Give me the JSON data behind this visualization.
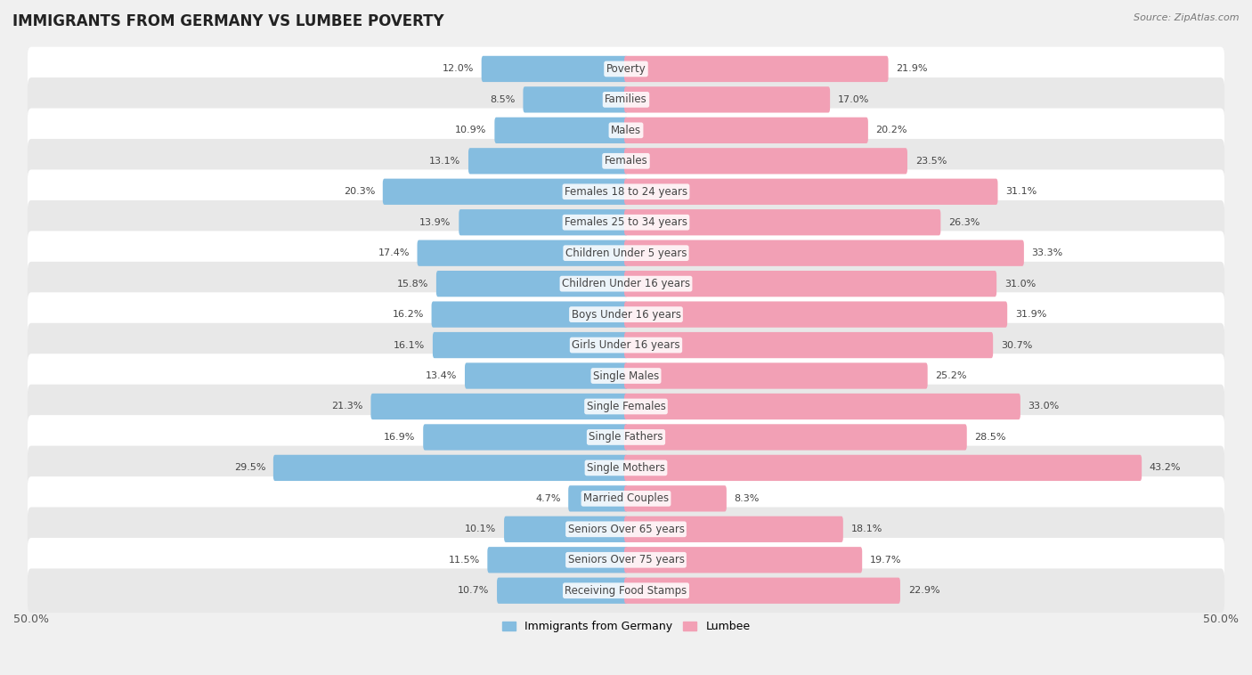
{
  "title": "IMMIGRANTS FROM GERMANY VS LUMBEE POVERTY",
  "source": "Source: ZipAtlas.com",
  "categories": [
    "Poverty",
    "Families",
    "Males",
    "Females",
    "Females 18 to 24 years",
    "Females 25 to 34 years",
    "Children Under 5 years",
    "Children Under 16 years",
    "Boys Under 16 years",
    "Girls Under 16 years",
    "Single Males",
    "Single Females",
    "Single Fathers",
    "Single Mothers",
    "Married Couples",
    "Seniors Over 65 years",
    "Seniors Over 75 years",
    "Receiving Food Stamps"
  ],
  "germany_values": [
    12.0,
    8.5,
    10.9,
    13.1,
    20.3,
    13.9,
    17.4,
    15.8,
    16.2,
    16.1,
    13.4,
    21.3,
    16.9,
    29.5,
    4.7,
    10.1,
    11.5,
    10.7
  ],
  "lumbee_values": [
    21.9,
    17.0,
    20.2,
    23.5,
    31.1,
    26.3,
    33.3,
    31.0,
    31.9,
    30.7,
    25.2,
    33.0,
    28.5,
    43.2,
    8.3,
    18.1,
    19.7,
    22.9
  ],
  "germany_color": "#85bde0",
  "lumbee_color": "#f2a0b5",
  "axis_max": 50.0,
  "background_color": "#f0f0f0",
  "row_bg_light": "#ffffff",
  "row_bg_dark": "#e8e8e8",
  "legend_germany": "Immigrants from Germany",
  "legend_lumbee": "Lumbee",
  "title_fontsize": 12,
  "label_fontsize": 8.5,
  "value_fontsize": 8
}
